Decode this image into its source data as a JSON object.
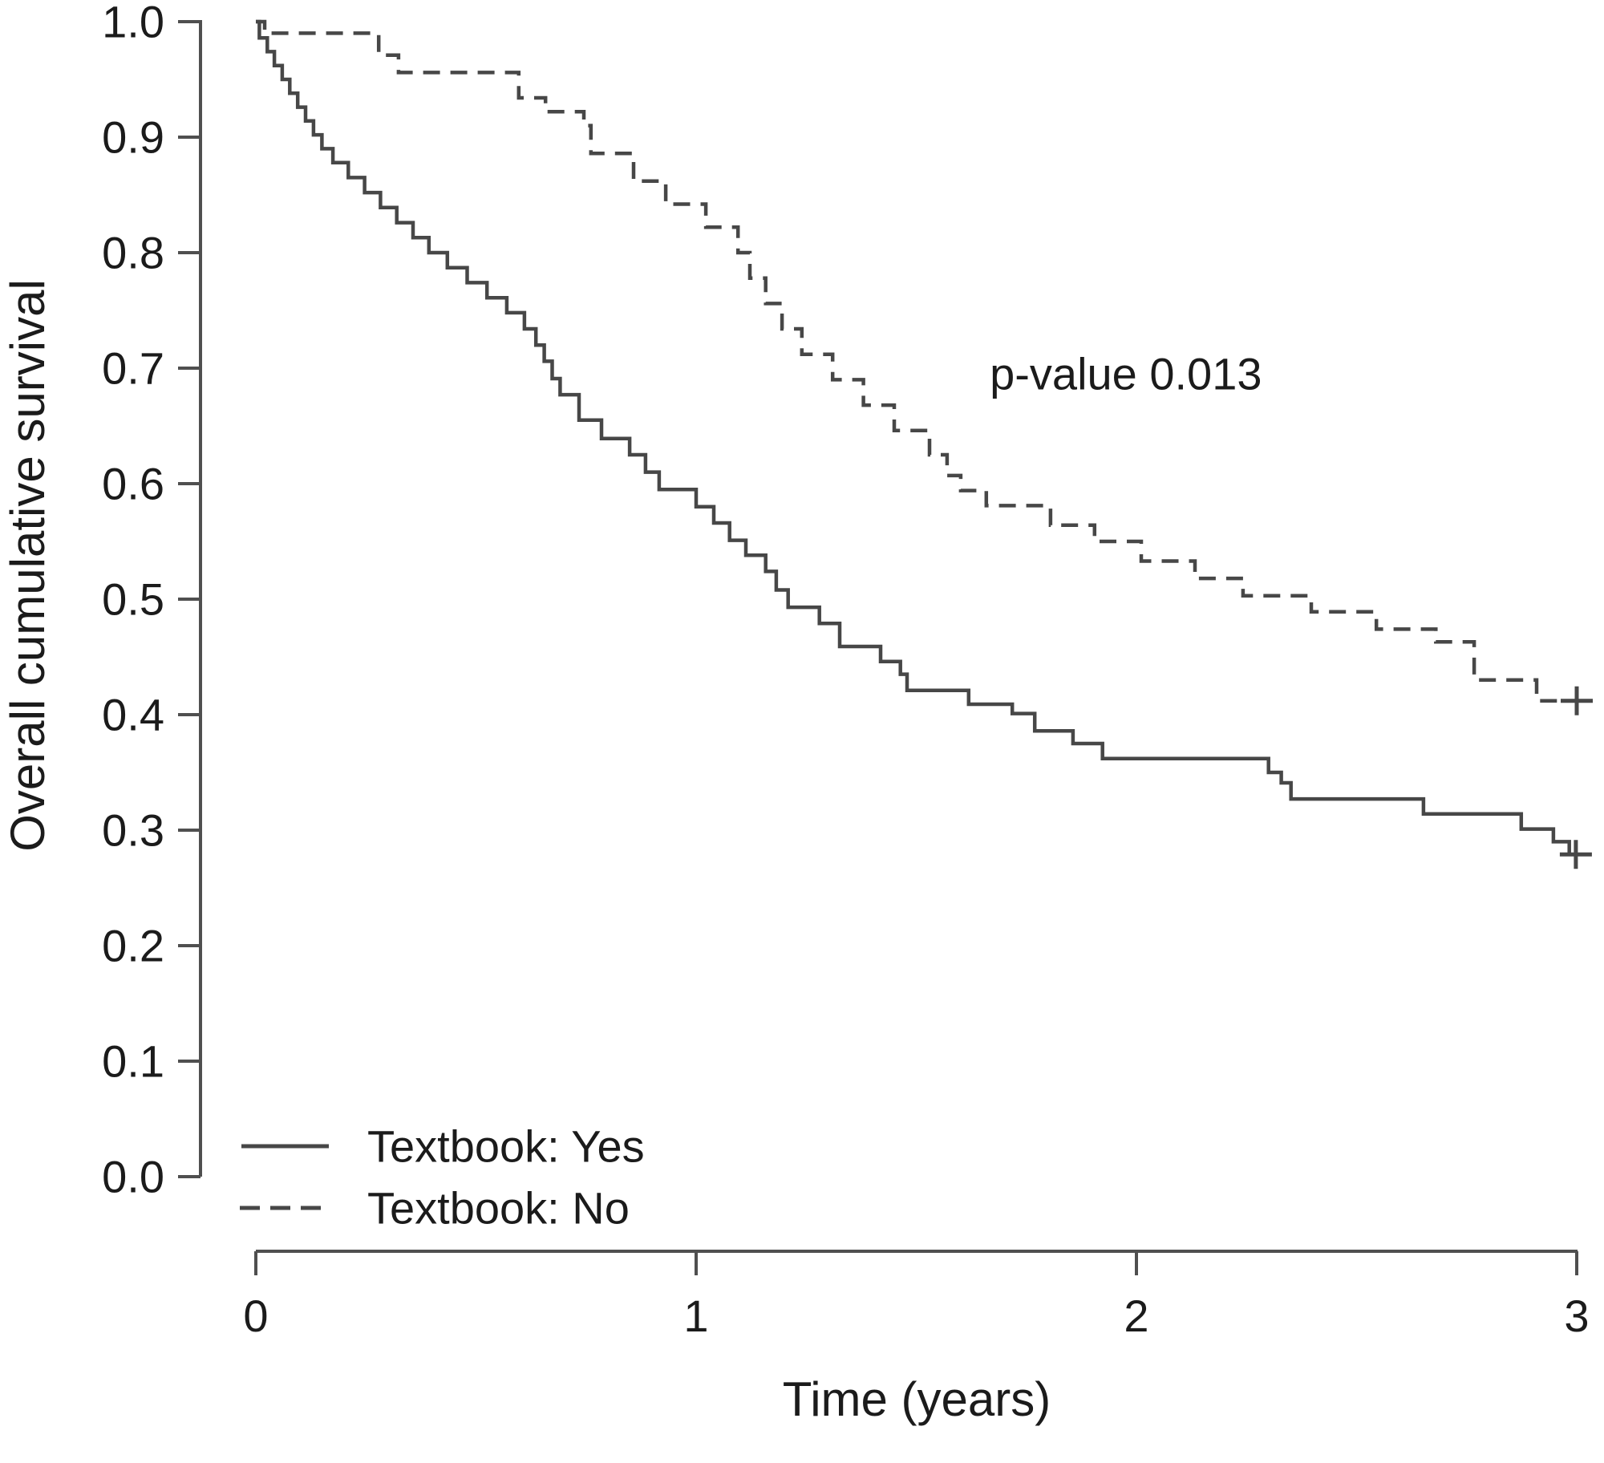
{
  "figure": {
    "background": "#ffffff",
    "line_color": "#474747",
    "axis_color": "#4f4f4f",
    "text_color": "#1b1b1b"
  },
  "annotation": {
    "text": "p-value 0.013",
    "t": 1.976,
    "s": 0.694
  },
  "legend": {
    "items": [
      {
        "label": "Textbook: Yes",
        "line": "solid"
      },
      {
        "label": "Textbook: No",
        "line": "dashed"
      }
    ]
  },
  "chart_data": {
    "type": "line",
    "subtype": "kaplan-meier-step",
    "title": "",
    "xlabel": "Time (years)",
    "ylabel": "Overall cumulative survival",
    "xlim": [
      0,
      3
    ],
    "ylim": [
      0.0,
      1.0
    ],
    "grid": false,
    "legend_position": "inside-bottom-left",
    "x_ticks": [
      {
        "v": 0,
        "label": "0"
      },
      {
        "v": 1,
        "label": "1"
      },
      {
        "v": 2,
        "label": "2"
      },
      {
        "v": 3,
        "label": "3"
      }
    ],
    "y_ticks": [
      {
        "v": 1.0,
        "label": "1.0"
      },
      {
        "v": 0.9,
        "label": "0.9"
      },
      {
        "v": 0.8,
        "label": "0.8"
      },
      {
        "v": 0.7,
        "label": "0.7"
      },
      {
        "v": 0.6,
        "label": "0.6"
      },
      {
        "v": 0.5,
        "label": "0.5"
      },
      {
        "v": 0.4,
        "label": "0.4"
      },
      {
        "v": 0.3,
        "label": "0.3"
      },
      {
        "v": 0.2,
        "label": "0.2"
      },
      {
        "v": 0.1,
        "label": "0.1"
      },
      {
        "v": 0.0,
        "label": "0.0"
      }
    ],
    "series": [
      {
        "name": "Textbook: Yes",
        "style": "solid",
        "color": "#474747",
        "end_t": 3.015,
        "censor": {
          "t": 2.998,
          "s": 0.279
        },
        "steps": [
          [
            0,
            1.0
          ],
          [
            0.008,
            0.986
          ],
          [
            0.026,
            0.974
          ],
          [
            0.042,
            0.962
          ],
          [
            0.06,
            0.95
          ],
          [
            0.077,
            0.938
          ],
          [
            0.095,
            0.926
          ],
          [
            0.113,
            0.914
          ],
          [
            0.131,
            0.902
          ],
          [
            0.15,
            0.89
          ],
          [
            0.175,
            0.878
          ],
          [
            0.21,
            0.865
          ],
          [
            0.247,
            0.852
          ],
          [
            0.283,
            0.839
          ],
          [
            0.32,
            0.826
          ],
          [
            0.357,
            0.813
          ],
          [
            0.393,
            0.8
          ],
          [
            0.435,
            0.787
          ],
          [
            0.48,
            0.774
          ],
          [
            0.525,
            0.761
          ],
          [
            0.57,
            0.748
          ],
          [
            0.61,
            0.734
          ],
          [
            0.636,
            0.72
          ],
          [
            0.655,
            0.706
          ],
          [
            0.673,
            0.691
          ],
          [
            0.691,
            0.677
          ],
          [
            0.734,
            0.655
          ],
          [
            0.785,
            0.639
          ],
          [
            0.849,
            0.625
          ],
          [
            0.885,
            0.61
          ],
          [
            0.916,
            0.595
          ],
          [
            1.0,
            0.58
          ],
          [
            1.04,
            0.566
          ],
          [
            1.076,
            0.551
          ],
          [
            1.113,
            0.538
          ],
          [
            1.158,
            0.524
          ],
          [
            1.182,
            0.508
          ],
          [
            1.209,
            0.493
          ],
          [
            1.28,
            0.479
          ],
          [
            1.326,
            0.459
          ],
          [
            1.419,
            0.446
          ],
          [
            1.464,
            0.435
          ],
          [
            1.479,
            0.421
          ],
          [
            1.619,
            0.409
          ],
          [
            1.718,
            0.401
          ],
          [
            1.769,
            0.386
          ],
          [
            1.856,
            0.375
          ],
          [
            1.923,
            0.362
          ],
          [
            2.3,
            0.35
          ],
          [
            2.329,
            0.341
          ],
          [
            2.351,
            0.327
          ],
          [
            2.652,
            0.314
          ],
          [
            2.874,
            0.301
          ],
          [
            2.947,
            0.29
          ],
          [
            2.983,
            0.279
          ]
        ]
      },
      {
        "name": "Textbook: No",
        "style": "dashed",
        "color": "#474747",
        "end_t": 3.02,
        "censor": {
          "t": 3.0,
          "s": 0.412
        },
        "steps": [
          [
            0,
            1.0
          ],
          [
            0.02,
            0.99
          ],
          [
            0.279,
            0.971
          ],
          [
            0.324,
            0.956
          ],
          [
            0.597,
            0.934
          ],
          [
            0.658,
            0.922
          ],
          [
            0.745,
            0.91
          ],
          [
            0.761,
            0.886
          ],
          [
            0.858,
            0.862
          ],
          [
            0.931,
            0.842
          ],
          [
            1.022,
            0.822
          ],
          [
            1.095,
            0.8
          ],
          [
            1.122,
            0.778
          ],
          [
            1.158,
            0.756
          ],
          [
            1.195,
            0.734
          ],
          [
            1.24,
            0.712
          ],
          [
            1.31,
            0.69
          ],
          [
            1.38,
            0.668
          ],
          [
            1.45,
            0.646
          ],
          [
            1.53,
            0.625
          ],
          [
            1.57,
            0.607
          ],
          [
            1.601,
            0.594
          ],
          [
            1.659,
            0.581
          ],
          [
            1.805,
            0.564
          ],
          [
            1.905,
            0.55
          ],
          [
            2.011,
            0.533
          ],
          [
            2.133,
            0.518
          ],
          [
            2.242,
            0.503
          ],
          [
            2.397,
            0.489
          ],
          [
            2.545,
            0.474
          ],
          [
            2.68,
            0.463
          ],
          [
            2.767,
            0.43
          ],
          [
            2.909,
            0.412
          ]
        ]
      }
    ]
  }
}
